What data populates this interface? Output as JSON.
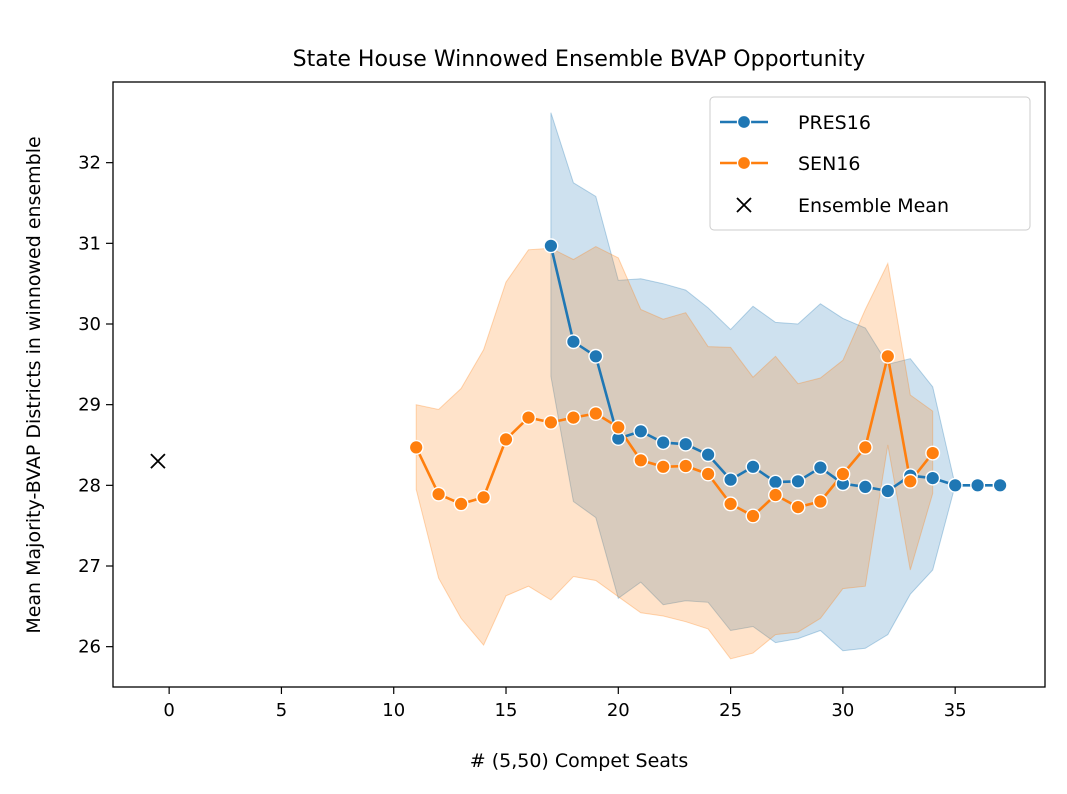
{
  "chart_data": {
    "type": "line",
    "title": "State House Winnowed Ensemble BVAP Opportunity",
    "xlabel": "# (5,50) Compet Seats",
    "ylabel": "Mean Majority-BVAP Districts in winnowed ensemble",
    "xlim": [
      -2.5,
      39
    ],
    "ylim": [
      25.5,
      33.0
    ],
    "xticks": [
      0,
      5,
      10,
      15,
      20,
      25,
      30,
      35
    ],
    "yticks": [
      26,
      27,
      28,
      29,
      30,
      31,
      32
    ],
    "grid": false,
    "legend_position": "top-right",
    "series": [
      {
        "name": "PRES16",
        "color": "#1f77b4",
        "marker": "circle",
        "x": [
          17,
          18,
          19,
          20,
          21,
          22,
          23,
          24,
          25,
          26,
          27,
          28,
          29,
          30,
          31,
          32,
          33,
          34,
          35,
          36,
          37
        ],
        "y": [
          30.97,
          29.78,
          29.6,
          28.58,
          28.67,
          28.53,
          28.51,
          28.38,
          28.07,
          28.23,
          28.04,
          28.05,
          28.22,
          28.02,
          27.98,
          27.93,
          28.12,
          28.09,
          28.0,
          28.0,
          28.0
        ],
        "band_low": [
          29.35,
          27.8,
          27.6,
          26.6,
          26.8,
          26.52,
          26.57,
          26.55,
          26.2,
          26.25,
          26.05,
          26.1,
          26.2,
          25.95,
          25.98,
          26.15,
          26.65,
          26.95,
          28.0,
          28.0,
          28.0
        ],
        "band_high": [
          32.62,
          31.75,
          31.58,
          30.54,
          30.56,
          30.5,
          30.42,
          30.2,
          29.93,
          30.22,
          30.02,
          30.0,
          30.25,
          30.07,
          29.95,
          29.5,
          29.57,
          29.22,
          28.0,
          28.0,
          28.0
        ]
      },
      {
        "name": "SEN16",
        "color": "#ff7f0e",
        "marker": "circle",
        "x": [
          11,
          12,
          13,
          14,
          15,
          16,
          17,
          18,
          19,
          20,
          21,
          22,
          23,
          24,
          25,
          26,
          27,
          28,
          29,
          30,
          31,
          32,
          33,
          34
        ],
        "y": [
          28.47,
          27.89,
          27.77,
          27.85,
          28.57,
          28.84,
          28.78,
          28.84,
          28.89,
          28.72,
          28.31,
          28.23,
          28.24,
          28.14,
          27.77,
          27.62,
          27.88,
          27.73,
          27.8,
          28.14,
          28.47,
          29.6,
          28.05,
          28.4
        ],
        "band_low": [
          27.95,
          26.85,
          26.35,
          26.02,
          26.63,
          26.75,
          26.58,
          26.87,
          26.82,
          26.62,
          26.42,
          26.38,
          26.31,
          26.22,
          25.85,
          25.92,
          26.15,
          26.18,
          26.35,
          26.72,
          26.75,
          28.5,
          26.95,
          27.9
        ],
        "band_high": [
          29.0,
          28.94,
          29.2,
          29.68,
          30.52,
          30.92,
          30.94,
          30.8,
          30.96,
          30.82,
          30.18,
          30.06,
          30.14,
          29.72,
          29.71,
          29.34,
          29.6,
          29.26,
          29.33,
          29.55,
          30.18,
          30.75,
          29.12,
          28.92
        ]
      }
    ],
    "ensemble_mean": {
      "name": "Ensemble Mean",
      "x": -0.5,
      "y": 28.3,
      "marker": "x",
      "color": "#000000"
    }
  }
}
